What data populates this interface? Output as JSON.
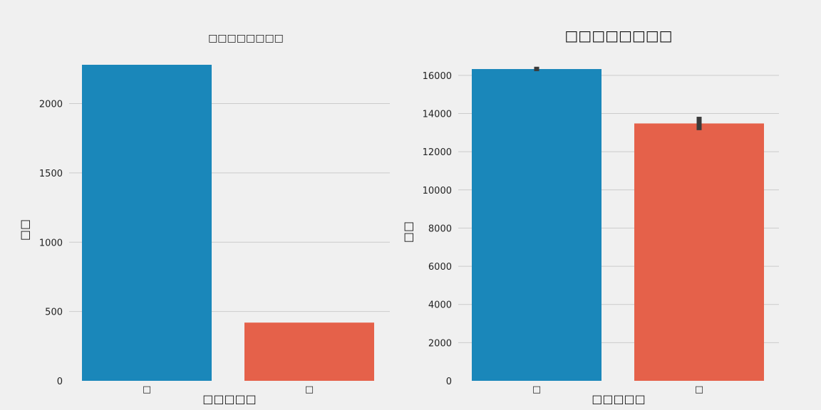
{
  "chart_data": [
    {
      "type": "bar",
      "title": "□□□□□□□□",
      "xlabel": "□□□□□",
      "ylabel": "□□",
      "categories": [
        "□",
        "□"
      ],
      "values": [
        2280,
        420
      ],
      "ylim": [
        0,
        2280
      ],
      "yticks": [
        0,
        500,
        1000,
        1500,
        2000
      ],
      "grid": true,
      "colors": [
        "#1a87ba",
        "#e5614a"
      ]
    },
    {
      "type": "bar",
      "title": "□□□□□□□□",
      "xlabel": "□□□□□",
      "ylabel": "□□",
      "categories": [
        "□",
        "□"
      ],
      "values": [
        16330,
        13480
      ],
      "error_bars": [
        [
          16220,
          16450
        ],
        [
          13130,
          13830
        ]
      ],
      "ylim": [
        0,
        16330
      ],
      "yticks": [
        0,
        2000,
        4000,
        6000,
        8000,
        10000,
        12000,
        14000,
        16000
      ],
      "grid": true,
      "colors": [
        "#1a87ba",
        "#e5614a"
      ],
      "errorbar_color": "#3b3b3b"
    }
  ]
}
